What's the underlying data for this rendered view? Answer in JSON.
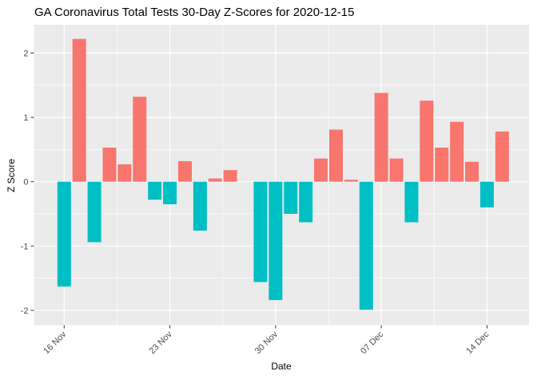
{
  "chart_data": {
    "type": "bar",
    "title": "GA Coronavirus Total Tests 30-Day Z-Scores for 2020-12-15",
    "xlabel": "Date",
    "ylabel": "Z Score",
    "categories": [
      "16 Nov",
      "17 Nov",
      "18 Nov",
      "19 Nov",
      "20 Nov",
      "21 Nov",
      "22 Nov",
      "23 Nov",
      "24 Nov",
      "25 Nov",
      "26 Nov",
      "27 Nov",
      "28 Nov",
      "29 Nov",
      "30 Nov",
      "01 Dec",
      "02 Dec",
      "03 Dec",
      "04 Dec",
      "05 Dec",
      "06 Dec",
      "07 Dec",
      "08 Dec",
      "09 Dec",
      "10 Dec",
      "11 Dec",
      "12 Dec",
      "13 Dec",
      "14 Dec",
      "15 Dec"
    ],
    "values": [
      -1.63,
      2.22,
      -0.94,
      0.53,
      0.27,
      1.32,
      -0.28,
      -0.35,
      0.32,
      -0.76,
      0.05,
      0.18,
      0.0,
      -1.56,
      -1.84,
      -0.5,
      -0.63,
      0.36,
      0.81,
      0.03,
      -1.99,
      1.38,
      0.36,
      -0.63,
      1.26,
      0.53,
      0.93,
      0.31,
      -0.4,
      0.78
    ],
    "x_ticks": [
      {
        "index": 0,
        "label": "16 Nov"
      },
      {
        "index": 7,
        "label": "23 Nov"
      },
      {
        "index": 14,
        "label": "30 Nov"
      },
      {
        "index": 21,
        "label": "07 Dec"
      },
      {
        "index": 28,
        "label": "14 Dec"
      }
    ],
    "y_ticks": [
      {
        "value": 2,
        "label": "2"
      },
      {
        "value": 1,
        "label": "1"
      },
      {
        "value": 0,
        "label": "0"
      },
      {
        "value": -1,
        "label": "-1"
      },
      {
        "value": -2,
        "label": "-2"
      }
    ],
    "ylim": [
      -2.23,
      2.44
    ],
    "xlim_index": [
      -2.0,
      30.78
    ],
    "bar_width_days": 0.9,
    "grid": {
      "major": true,
      "minor": true
    },
    "legend_position": "none",
    "colors": {
      "positive_bar": "#F8766D",
      "negative_bar": "#00BFC4",
      "panel_bg": "#EBEBEB",
      "grid": "#FFFFFF",
      "axis_text": "#4D4D4D",
      "tick_mark": "#333333",
      "title_text": "#000000"
    }
  }
}
